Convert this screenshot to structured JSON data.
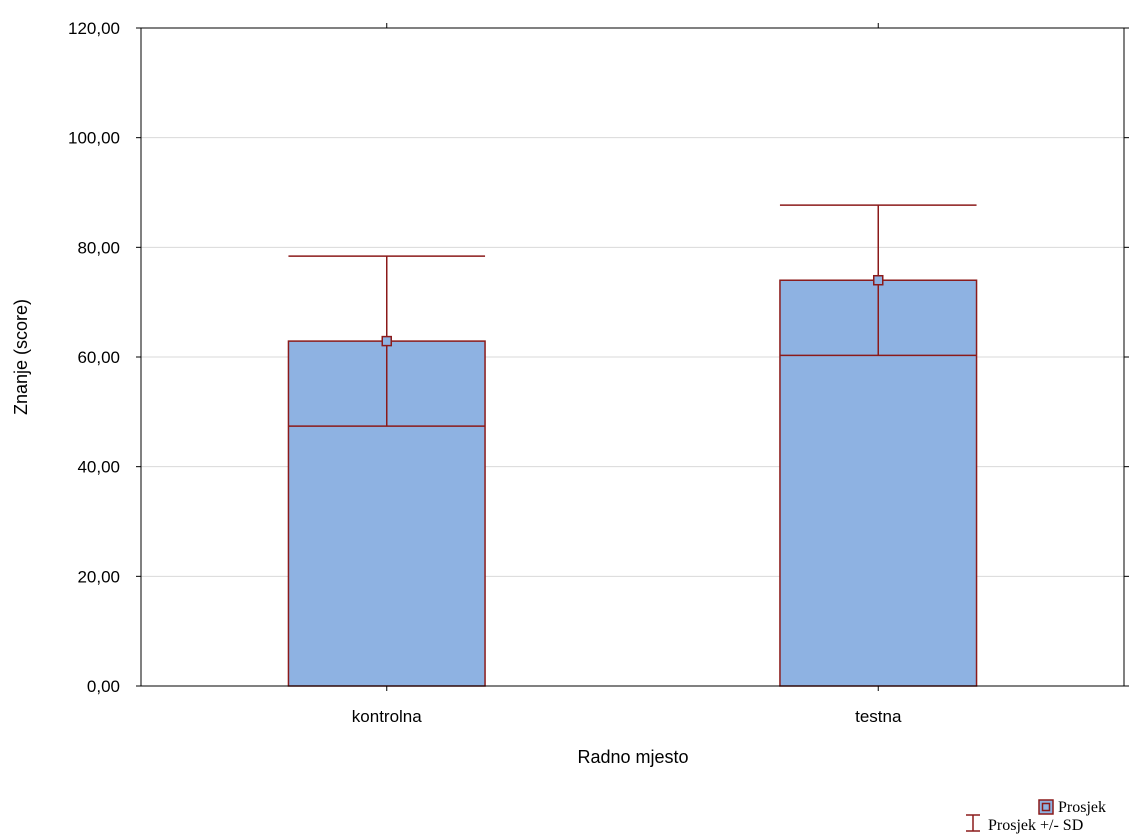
{
  "chart_data": {
    "type": "bar",
    "categories": [
      "kontrolna",
      "testna"
    ],
    "series": [
      {
        "name": "Prosjek",
        "values": [
          62.9,
          74.0
        ],
        "sd": [
          15.5,
          13.7
        ]
      }
    ],
    "xlabel": "Radno mjesto",
    "ylabel": "Znanje (score)",
    "ylim": [
      0,
      120
    ],
    "yticks": [
      0,
      20,
      40,
      60,
      80,
      100,
      120
    ],
    "ytick_labels": [
      "0,00",
      "20,00",
      "40,00",
      "60,00",
      "80,00",
      "100,00",
      "120,00"
    ],
    "grid": true,
    "legend": {
      "placement": "bottom-right",
      "entries": [
        "Prosjek",
        "Prosjek +/- SD"
      ]
    }
  },
  "colors": {
    "bar_fill": "#8eb2e2",
    "bar_stroke": "#8b1a1a",
    "grid": "#d9d9d9",
    "axis": "#000000"
  }
}
